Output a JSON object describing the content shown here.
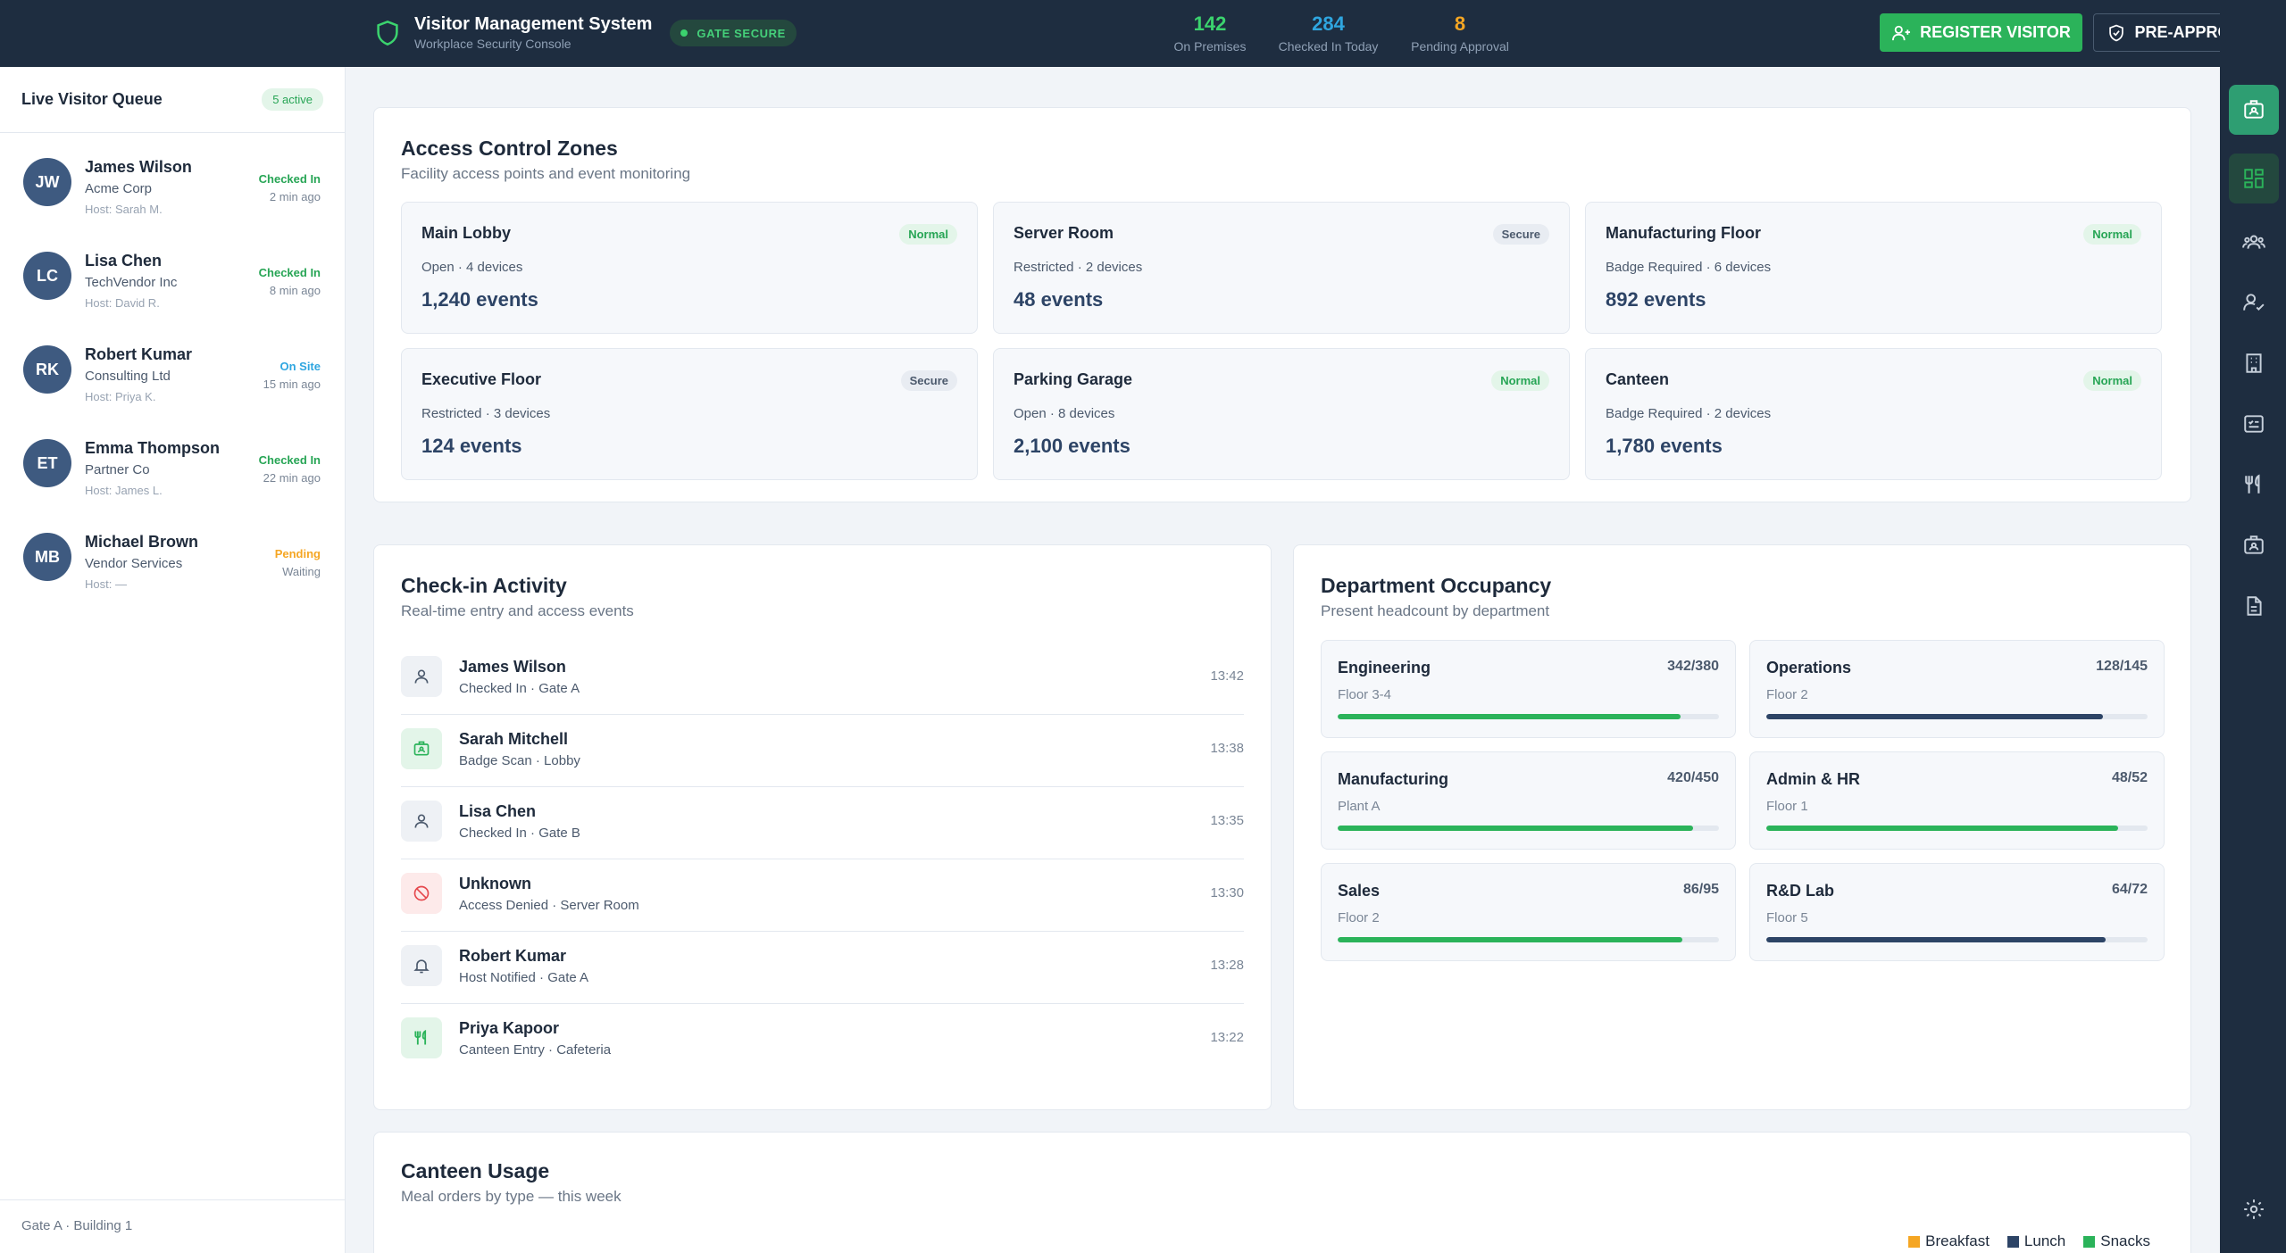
{
  "header": {
    "title": "Visitor Management System",
    "subtitle": "Workplace Security Console",
    "gate_badge": "GATE SECURE",
    "stats": [
      {
        "value": "142",
        "label": "On Premises",
        "color": "#3bd36e"
      },
      {
        "value": "284",
        "label": "Checked In Today",
        "color": "#2fa6e0"
      },
      {
        "value": "8",
        "label": "Pending Approval",
        "color": "#f5a623"
      }
    ],
    "register_label": "REGISTER VISITOR",
    "preapprove_label": "PRE-APPROVE"
  },
  "queue": {
    "title": "Live Visitor Queue",
    "badge": "5 active",
    "items": [
      {
        "initials": "JW",
        "name": "James Wilson",
        "company": "Acme Corp",
        "host": "Host: Sarah M.",
        "status": "Checked In",
        "status_color": "#27a555",
        "ago": "2 min ago"
      },
      {
        "initials": "LC",
        "name": "Lisa Chen",
        "company": "TechVendor Inc",
        "host": "Host: David R.",
        "status": "Checked In",
        "status_color": "#27a555",
        "ago": "8 min ago"
      },
      {
        "initials": "RK",
        "name": "Robert Kumar",
        "company": "Consulting Ltd",
        "host": "Host: Priya K.",
        "status": "On Site",
        "status_color": "#2fa6e0",
        "ago": "15 min ago"
      },
      {
        "initials": "ET",
        "name": "Emma Thompson",
        "company": "Partner Co",
        "host": "Host: James L.",
        "status": "Checked In",
        "status_color": "#27a555",
        "ago": "22 min ago"
      },
      {
        "initials": "MB",
        "name": "Michael Brown",
        "company": "Vendor Services",
        "host": "Host: —",
        "status": "Pending",
        "status_color": "#f5a623",
        "ago": "Waiting"
      }
    ],
    "footer": "Gate A · Building 1"
  },
  "zones": {
    "title": "Access Control Zones",
    "subtitle": "Facility access points and event monitoring",
    "items": [
      {
        "name": "Main Lobby",
        "status": "Normal",
        "meta": "Open · 4 devices",
        "events": "1,240 events"
      },
      {
        "name": "Server Room",
        "status": "Secure",
        "meta": "Restricted · 2 devices",
        "events": "48 events"
      },
      {
        "name": "Manufacturing Floor",
        "status": "Normal",
        "meta": "Badge Required · 6 devices",
        "events": "892 events"
      },
      {
        "name": "Executive Floor",
        "status": "Secure",
        "meta": "Restricted · 3 devices",
        "events": "124 events"
      },
      {
        "name": "Parking Garage",
        "status": "Normal",
        "meta": "Open · 8 devices",
        "events": "2,100 events"
      },
      {
        "name": "Canteen",
        "status": "Normal",
        "meta": "Badge Required · 2 devices",
        "events": "1,780 events"
      }
    ]
  },
  "activity": {
    "title": "Check-in Activity",
    "subtitle": "Real-time entry and access events",
    "items": [
      {
        "icon": "user-icon",
        "name": "James Wilson",
        "detail": "Checked In · Gate A",
        "time": "13:42"
      },
      {
        "icon": "badge-icon",
        "name": "Sarah Mitchell",
        "detail": "Badge Scan · Lobby",
        "time": "13:38"
      },
      {
        "icon": "user-icon",
        "name": "Lisa Chen",
        "detail": "Checked In · Gate B",
        "time": "13:35"
      },
      {
        "icon": "denied-icon",
        "name": "Unknown",
        "detail": "Access Denied · Server Room",
        "time": "13:30"
      },
      {
        "icon": "bell-icon",
        "name": "Robert Kumar",
        "detail": "Host Notified · Gate A",
        "time": "13:28"
      },
      {
        "icon": "utensils-icon",
        "name": "Priya Kapoor",
        "detail": "Canteen Entry · Cafeteria",
        "time": "13:22"
      }
    ]
  },
  "occupancy": {
    "title": "Department Occupancy",
    "subtitle": "Present headcount by department",
    "items": [
      {
        "name": "Engineering",
        "count": "342/380",
        "floor": "Floor 3-4",
        "fill": 0.9,
        "color": "#2bb35a"
      },
      {
        "name": "Operations",
        "count": "128/145",
        "floor": "Floor 2",
        "fill": 0.883,
        "color": "#2d4466"
      },
      {
        "name": "Manufacturing",
        "count": "420/450",
        "floor": "Plant A",
        "fill": 0.933,
        "color": "#2bb35a"
      },
      {
        "name": "Admin & HR",
        "count": "48/52",
        "floor": "Floor 1",
        "fill": 0.923,
        "color": "#2bb35a"
      },
      {
        "name": "Sales",
        "count": "86/95",
        "floor": "Floor 2",
        "fill": 0.905,
        "color": "#2bb35a"
      },
      {
        "name": "R&D Lab",
        "count": "64/72",
        "floor": "Floor 5",
        "fill": 0.889,
        "color": "#2d4466"
      }
    ]
  },
  "canteen": {
    "title": "Canteen Usage",
    "subtitle": "Meal orders by type — this week",
    "legend": [
      {
        "label": "Breakfast",
        "color": "#f5a623"
      },
      {
        "label": "Lunch",
        "color": "#2d4466"
      },
      {
        "label": "Snacks",
        "color": "#2bb35a"
      }
    ]
  },
  "rail": [
    "id-card-icon",
    "dashboard-icon",
    "users-icon",
    "user-check-icon",
    "building-icon",
    "checklist-icon",
    "utensils-icon",
    "badge-icon",
    "document-icon",
    "gear-icon"
  ]
}
